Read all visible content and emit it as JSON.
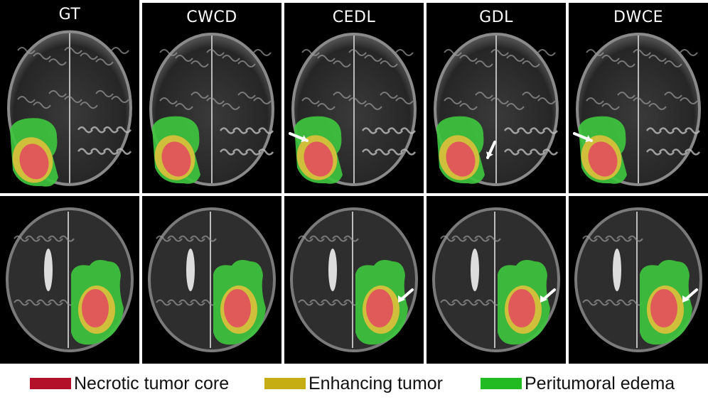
{
  "columns": [
    {
      "title": "GT"
    },
    {
      "title": "CWCD"
    },
    {
      "title": "CEDL"
    },
    {
      "title": "GDL"
    },
    {
      "title": "DWCE"
    }
  ],
  "legend": [
    {
      "label": "Necrotic tumor core",
      "color": "#b3102a"
    },
    {
      "label": "Enhancing tumor",
      "color": "#c7ad14"
    },
    {
      "label": "Peritumoral edema",
      "color": "#22bb22"
    }
  ],
  "overlay_colors": {
    "necrotic": "#e05a5a",
    "enhancing": "#cfbf3a",
    "edema": "#3ec43e"
  }
}
